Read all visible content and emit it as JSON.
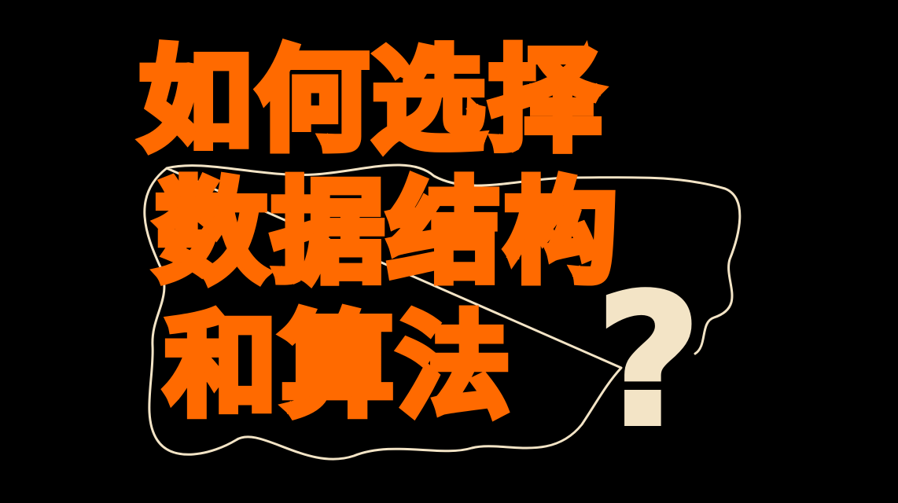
{
  "title": {
    "line1": "如何选择",
    "line2": "数据结构",
    "line3": "和算法"
  },
  "question_mark": "?",
  "colors": {
    "background": "#000000",
    "title_text": "#ff6a00",
    "outline": "#f3e4c6",
    "question_mark": "#f3e4c6"
  }
}
